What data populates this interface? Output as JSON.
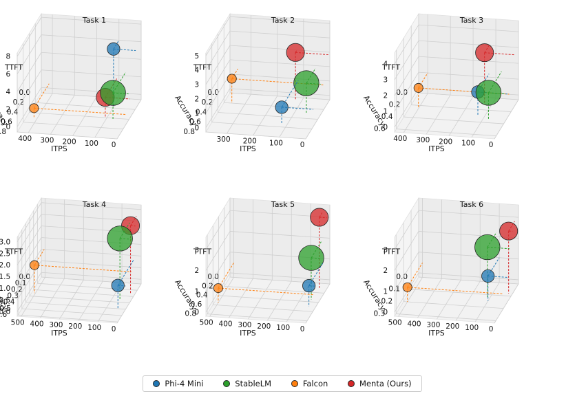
{
  "chart_data": {
    "type": "scatter3d",
    "axis_labels": {
      "x": "ITPS",
      "y": "Accuracy",
      "z": "TTFT"
    },
    "series": [
      {
        "name": "Phi-4 Mini",
        "color": "#1f77b4"
      },
      {
        "name": "StableLM",
        "color": "#2ca02c"
      },
      {
        "name": "Falcon",
        "color": "#ff7f0e"
      },
      {
        "name": "Menta (Ours)",
        "color": "#d62728"
      }
    ],
    "panels": [
      {
        "title": "Task 1",
        "itps_ticks": [
          "400",
          "300",
          "200",
          "100",
          "0"
        ],
        "itps_range": [
          450,
          0
        ],
        "acc_ticks": [
          "0.0",
          "0.2",
          "0.4",
          "0.6",
          "0.8"
        ],
        "acc_range": [
          0,
          0.8
        ],
        "ttft_ticks": [
          "0",
          "2",
          "4",
          "6",
          "8"
        ],
        "ttft_range": [
          -0.6,
          8.4
        ],
        "points": [
          {
            "series": "Phi-4 Mini",
            "itps": 100,
            "acc": 0.18,
            "ttft": 6.0,
            "size": 2.0
          },
          {
            "series": "StableLM",
            "itps": 70,
            "acc": 0.42,
            "ttft": 2.4,
            "size": 5.5
          },
          {
            "series": "Falcon",
            "itps": 415,
            "acc": 0.5,
            "ttft": 0.5,
            "size": 1.0
          },
          {
            "series": "Menta (Ours)",
            "itps": 110,
            "acc": 0.38,
            "ttft": 1.6,
            "size": 3.5
          }
        ]
      },
      {
        "title": "Task 2",
        "itps_ticks": [
          "300",
          "200",
          "100",
          "0"
        ],
        "itps_range": [
          380,
          0
        ],
        "acc_ticks": [
          "0.0",
          "0.2",
          "0.4",
          "0.6",
          "0.8"
        ],
        "acc_range": [
          0,
          0.8
        ],
        "ttft_ticks": [
          "0",
          "1",
          "2",
          "3",
          "4",
          "5"
        ],
        "ttft_range": [
          -0.3,
          5.2
        ],
        "points": [
          {
            "series": "Phi-4 Mini",
            "itps": 120,
            "acc": 0.55,
            "ttft": 0.9,
            "size": 2.0
          },
          {
            "series": "StableLM",
            "itps": 55,
            "acc": 0.3,
            "ttft": 1.8,
            "size": 5.5
          },
          {
            "series": "Falcon",
            "itps": 350,
            "acc": 0.2,
            "ttft": 1.4,
            "size": 1.0
          },
          {
            "series": "Menta (Ours)",
            "itps": 125,
            "acc": 0.05,
            "ttft": 3.0,
            "size": 3.5
          }
        ]
      },
      {
        "title": "Task 3",
        "itps_ticks": [
          "400",
          "300",
          "200",
          "100",
          "0"
        ],
        "itps_range": [
          440,
          0
        ],
        "acc_ticks": [
          "0.0",
          "0.2",
          "0.4",
          "0.6"
        ],
        "acc_range": [
          0,
          0.65
        ],
        "ttft_ticks": [
          "0",
          "1",
          "2",
          "3",
          "4"
        ],
        "ttft_range": [
          -0.3,
          4.7
        ],
        "points": [
          {
            "series": "Phi-4 Mini",
            "itps": 130,
            "acc": 0.3,
            "ttft": 1.2,
            "size": 2.0
          },
          {
            "series": "StableLM",
            "itps": 75,
            "acc": 0.35,
            "ttft": 1.4,
            "size": 5.5
          },
          {
            "series": "Falcon",
            "itps": 400,
            "acc": 0.25,
            "ttft": 1.0,
            "size": 1.0
          },
          {
            "series": "Menta (Ours)",
            "itps": 130,
            "acc": 0.12,
            "ttft": 3.0,
            "size": 3.5
          }
        ]
      },
      {
        "title": "Task 4",
        "itps_ticks": [
          "500",
          "400",
          "300",
          "200",
          "100",
          "0"
        ],
        "itps_range": [
          520,
          0
        ],
        "acc_ticks": [
          "0.0",
          "0.1",
          "0.2",
          "0.3",
          "0.4",
          "0.5",
          "0.6"
        ],
        "acc_range": [
          0,
          0.62
        ],
        "ttft_ticks": [
          "0.0",
          "0.5",
          "1.0",
          "1.5",
          "2.0",
          "2.5",
          "3.0"
        ],
        "ttft_range": [
          -0.2,
          3.2
        ],
        "points": [
          {
            "series": "Phi-4 Mini",
            "itps": 40,
            "acc": 0.4,
            "ttft": 0.8,
            "size": 2.0
          },
          {
            "series": "StableLM",
            "itps": 60,
            "acc": 0.25,
            "ttft": 2.4,
            "size": 5.5
          },
          {
            "series": "Falcon",
            "itps": 505,
            "acc": 0.25,
            "ttft": 1.0,
            "size": 1.0
          },
          {
            "series": "Menta (Ours)",
            "itps": 25,
            "acc": 0.15,
            "ttft": 2.7,
            "size": 3.5
          }
        ]
      },
      {
        "title": "Task 5",
        "itps_ticks": [
          "500",
          "400",
          "300",
          "200",
          "100",
          "0"
        ],
        "itps_range": [
          520,
          0
        ],
        "acc_ticks": [
          "0.0",
          "0.2",
          "0.4",
          "0.6",
          "0.8"
        ],
        "acc_range": [
          0,
          0.85
        ],
        "ttft_ticks": [
          "0",
          "1",
          "2",
          "3"
        ],
        "ttft_range": [
          -0.2,
          3.6
        ],
        "points": [
          {
            "series": "Phi-4 Mini",
            "itps": 35,
            "acc": 0.5,
            "ttft": 0.8,
            "size": 2.0
          },
          {
            "series": "StableLM",
            "itps": 45,
            "acc": 0.35,
            "ttft": 1.8,
            "size": 5.5
          },
          {
            "series": "Falcon",
            "itps": 500,
            "acc": 0.55,
            "ttft": 0.5,
            "size": 1.0
          },
          {
            "series": "Menta (Ours)",
            "itps": 40,
            "acc": 0.1,
            "ttft": 3.2,
            "size": 3.5
          }
        ]
      },
      {
        "title": "Task 6",
        "itps_ticks": [
          "500",
          "400",
          "300",
          "200",
          "100",
          "0"
        ],
        "itps_range": [
          520,
          0
        ],
        "acc_ticks": [
          "0.0",
          "0.1",
          "0.2",
          "0.3"
        ],
        "acc_range": [
          0,
          0.32
        ],
        "ttft_ticks": [
          "0",
          "1",
          "2",
          "3"
        ],
        "ttft_range": [
          -0.2,
          3.6
        ],
        "points": [
          {
            "series": "Phi-4 Mini",
            "itps": 100,
            "acc": 0.15,
            "ttft": 1.0,
            "size": 2.0
          },
          {
            "series": "StableLM",
            "itps": 115,
            "acc": 0.12,
            "ttft": 2.2,
            "size": 5.5
          },
          {
            "series": "Falcon",
            "itps": 500,
            "acc": 0.2,
            "ttft": 0.5,
            "size": 1.0
          },
          {
            "series": "Menta (Ours)",
            "itps": 20,
            "acc": 0.08,
            "ttft": 2.8,
            "size": 3.5
          }
        ]
      }
    ]
  },
  "legend": {
    "items": [
      {
        "label": "Phi-4 Mini",
        "color": "#1f77b4"
      },
      {
        "label": "StableLM",
        "color": "#2ca02c"
      },
      {
        "label": "Falcon",
        "color": "#ff7f0e"
      },
      {
        "label": "Menta (Ours)",
        "color": "#d62728"
      }
    ]
  }
}
